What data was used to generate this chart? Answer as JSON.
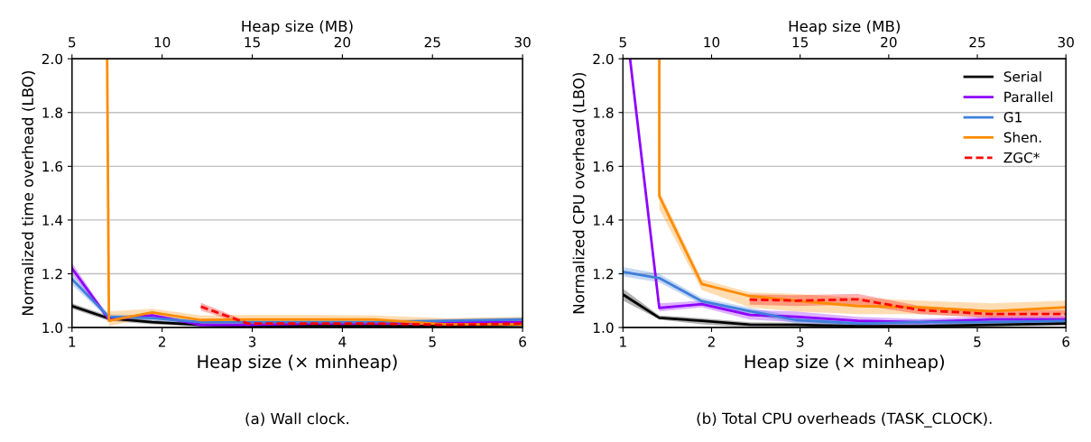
{
  "chart_data": [
    {
      "type": "line",
      "xlabel": "Heap size (× minheap)",
      "ylabel": "Normalized time overhead (LBO)",
      "x2label": "Heap size (MB)",
      "x": [
        1,
        1.41,
        1.89,
        2.43,
        2.95,
        3.65,
        4.35,
        5.15,
        6
      ],
      "xlim": [
        1,
        6
      ],
      "xticks": [
        1,
        2,
        3,
        4,
        5,
        6
      ],
      "x2lim": [
        5,
        30
      ],
      "x2ticks": [
        5,
        10,
        15,
        20,
        25,
        30
      ],
      "ylim": [
        1,
        2
      ],
      "yticks": [
        {
          "value": 1,
          "label": "1.0"
        },
        {
          "value": 1.2,
          "label": "1.2"
        },
        {
          "value": 1.4,
          "label": "1.4"
        },
        {
          "value": 1.6,
          "label": "1.6"
        },
        {
          "value": 1.8,
          "label": "1.8"
        },
        {
          "value": 2,
          "label": "2.0"
        }
      ],
      "grid": "y",
      "legend": false,
      "line_style": "solid",
      "marker": "none",
      "annotations": [
        "(a) Wall clock."
      ],
      "series": [
        {
          "color": "#000000",
          "values": [
            1.08,
            1.034,
            1.02,
            1.01,
            1.005,
            1.005,
            1.005,
            1.005,
            1.01
          ],
          "lower": [
            1.07,
            1.025,
            1.012,
            1.003,
            1.0,
            1.0,
            1.0,
            1.0,
            1.004
          ],
          "upper": [
            1.09,
            1.043,
            1.028,
            1.017,
            1.01,
            1.01,
            1.01,
            1.01,
            1.016
          ]
        },
        {
          "color": "#8f00ff",
          "values": [
            1.22,
            1.03,
            1.045,
            1.01,
            1.01,
            1.015,
            1.015,
            1.02,
            1.02
          ],
          "lower": [
            1.2,
            1.022,
            1.037,
            1.003,
            1.003,
            1.008,
            1.008,
            1.013,
            1.013
          ],
          "upper": [
            1.24,
            1.038,
            1.053,
            1.017,
            1.017,
            1.022,
            1.022,
            1.027,
            1.027
          ]
        },
        {
          "color": "#3f7fdb",
          "values": [
            1.18,
            1.04,
            1.035,
            1.02,
            1.02,
            1.02,
            1.02,
            1.025,
            1.03
          ],
          "lower": [
            1.16,
            1.03,
            1.025,
            1.012,
            1.012,
            1.012,
            1.012,
            1.017,
            1.022
          ],
          "upper": [
            1.2,
            1.05,
            1.045,
            1.028,
            1.028,
            1.028,
            1.028,
            1.033,
            1.038
          ]
        },
        {
          "color": "#ff8c00",
          "x": [
            1.39,
            1.41,
            1.89,
            2.43,
            2.95,
            3.65,
            4.35,
            5.15,
            6
          ],
          "values": [
            2.0,
            1.025,
            1.056,
            1.028,
            1.03,
            1.03,
            1.03,
            1.012,
            1.012
          ],
          "lower": [
            2.0,
            1.005,
            1.04,
            1.012,
            1.014,
            1.014,
            1.014,
            1.005,
            1.005
          ],
          "upper": [
            2.0,
            1.06,
            1.07,
            1.045,
            1.047,
            1.047,
            1.045,
            1.035,
            1.04
          ]
        },
        {
          "color": "#ff0000",
          "line_style": "dashed",
          "x": [
            2.43,
            2.95,
            3.65,
            4.35,
            5.15,
            6
          ],
          "values": [
            1.078,
            1.015,
            1.015,
            1.015,
            1.01,
            1.015
          ],
          "lower": [
            1.063,
            1.008,
            1.008,
            1.008,
            1.003,
            1.008
          ],
          "upper": [
            1.093,
            1.022,
            1.022,
            1.022,
            1.017,
            1.022
          ]
        }
      ]
    },
    {
      "type": "line",
      "xlabel": "Heap size (× minheap)",
      "ylabel": "Normalized CPU overhead (LBO)",
      "x2label": "Heap size (MB)",
      "x": [
        1,
        1.41,
        1.89,
        2.43,
        2.95,
        3.65,
        4.35,
        5.15,
        6
      ],
      "xlim": [
        1,
        6
      ],
      "xticks": [
        1,
        2,
        3,
        4,
        5,
        6
      ],
      "x2lim": [
        5,
        30
      ],
      "x2ticks": [
        5,
        10,
        15,
        20,
        25,
        30
      ],
      "ylim": [
        1,
        2
      ],
      "yticks": [
        {
          "value": 1,
          "label": "1.0"
        },
        {
          "value": 1.2,
          "label": "1.2"
        },
        {
          "value": 1.4,
          "label": "1.4"
        },
        {
          "value": 1.6,
          "label": "1.6"
        },
        {
          "value": 1.8,
          "label": "1.8"
        },
        {
          "value": 2,
          "label": "2.0"
        }
      ],
      "grid": "y",
      "legend": "top right",
      "line_style": "solid",
      "marker": "none",
      "annotations": [
        "(b) Total CPU overheads (TASK_CLOCK)."
      ],
      "series": [
        {
          "name": "Serial",
          "color": "#000000",
          "values": [
            1.123,
            1.036,
            1.025,
            1.011,
            1.01,
            1.005,
            1.005,
            1.01,
            1.015
          ],
          "lower": [
            1.1,
            1.03,
            1.012,
            1.0,
            1.0,
            1.0,
            1.0,
            1.003,
            1.008
          ],
          "upper": [
            1.145,
            1.045,
            1.035,
            1.02,
            1.018,
            1.012,
            1.012,
            1.017,
            1.022
          ]
        },
        {
          "name": "Parallel",
          "color": "#8f00ff",
          "x": [
            1.08,
            1.41,
            1.89,
            2.43,
            2.95,
            3.65,
            4.35,
            5.15,
            6
          ],
          "values": [
            2.0,
            1.073,
            1.087,
            1.047,
            1.04,
            1.025,
            1.02,
            1.03,
            1.03
          ],
          "lower": [
            2.0,
            1.06,
            1.075,
            1.03,
            1.02,
            1.01,
            1.008,
            1.018,
            1.018
          ],
          "upper": [
            2.0,
            1.09,
            1.1,
            1.065,
            1.06,
            1.04,
            1.032,
            1.042,
            1.042
          ]
        },
        {
          "name": "G1",
          "color": "#3f7fdb",
          "values": [
            1.207,
            1.184,
            1.098,
            1.061,
            1.028,
            1.015,
            1.02,
            1.02,
            1.025
          ],
          "lower": [
            1.19,
            1.168,
            1.085,
            1.048,
            1.016,
            1.005,
            1.01,
            1.01,
            1.015
          ],
          "upper": [
            1.225,
            1.2,
            1.11,
            1.074,
            1.04,
            1.025,
            1.03,
            1.03,
            1.035
          ]
        },
        {
          "name": "Shen.",
          "color": "#ff8c00",
          "x": [
            1.41,
            1.41,
            1.89,
            2.43,
            2.95,
            3.65,
            4.35,
            5.15,
            6
          ],
          "values": [
            2.0,
            1.489,
            1.162,
            1.117,
            1.1,
            1.08,
            1.075,
            1.06,
            1.075
          ],
          "lower": [
            2.0,
            1.44,
            1.14,
            1.075,
            1.06,
            1.05,
            1.05,
            1.04,
            1.05
          ],
          "upper": [
            2.0,
            1.51,
            1.18,
            1.13,
            1.125,
            1.11,
            1.1,
            1.09,
            1.1
          ]
        },
        {
          "name": "ZGC*",
          "color": "#ff0000",
          "line_style": "dashed",
          "x": [
            2.43,
            2.95,
            3.65,
            4.35,
            5.15,
            6
          ],
          "values": [
            1.104,
            1.1,
            1.105,
            1.065,
            1.05,
            1.05
          ],
          "lower": [
            1.085,
            1.08,
            1.085,
            1.05,
            1.035,
            1.035
          ],
          "upper": [
            1.123,
            1.12,
            1.125,
            1.08,
            1.065,
            1.065
          ]
        }
      ]
    }
  ]
}
